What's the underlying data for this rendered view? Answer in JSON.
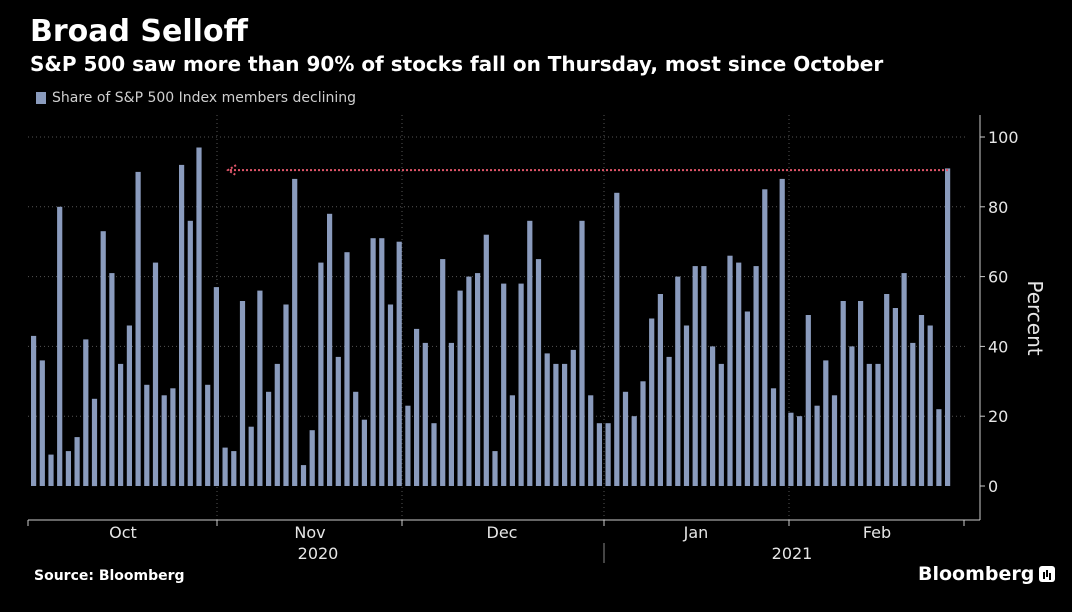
{
  "chart_data": {
    "type": "bar",
    "title": "Broad Selloff",
    "subtitle": "S&P 500 saw more than 90% of stocks fall on Thursday, most since October",
    "legend": [
      "Share of S&P 500 Index members declining"
    ],
    "ylabel": "Percent",
    "ylim": [
      0,
      105
    ],
    "yticks": [
      0,
      20,
      40,
      60,
      80,
      100
    ],
    "x_month_labels": [
      "Oct",
      "Nov",
      "Dec",
      "Jan",
      "Feb"
    ],
    "x_year_labels": [
      "2020",
      "2021"
    ],
    "reference_line": {
      "value": 90.5,
      "style": "dotted",
      "color": "#e0566a"
    },
    "series": [
      {
        "name": "Share of S&P 500 Index members declining",
        "color": "#8a9bbd",
        "values": [
          43,
          36,
          9,
          80,
          10,
          14,
          42,
          25,
          73,
          61,
          35,
          46,
          90,
          29,
          64,
          26,
          28,
          92,
          76,
          97,
          29,
          57,
          11,
          10,
          53,
          17,
          56,
          27,
          35,
          52,
          88,
          6,
          16,
          64,
          78,
          37,
          67,
          27,
          19,
          71,
          71,
          52,
          70,
          23,
          45,
          41,
          18,
          65,
          41,
          56,
          60,
          61,
          72,
          10,
          58,
          26,
          58,
          76,
          65,
          38,
          35,
          35,
          39,
          76,
          26,
          18,
          18,
          84,
          27,
          20,
          30,
          48,
          55,
          37,
          60,
          46,
          63,
          63,
          40,
          35,
          66,
          64,
          50,
          63,
          85,
          28,
          88,
          21,
          20,
          49,
          23,
          36,
          26,
          53,
          40,
          53,
          35,
          35,
          55,
          51,
          61,
          41,
          49,
          46,
          22,
          91
        ]
      }
    ]
  },
  "footer": {
    "source": "Source: Bloomberg",
    "brand": "Bloomberg"
  }
}
